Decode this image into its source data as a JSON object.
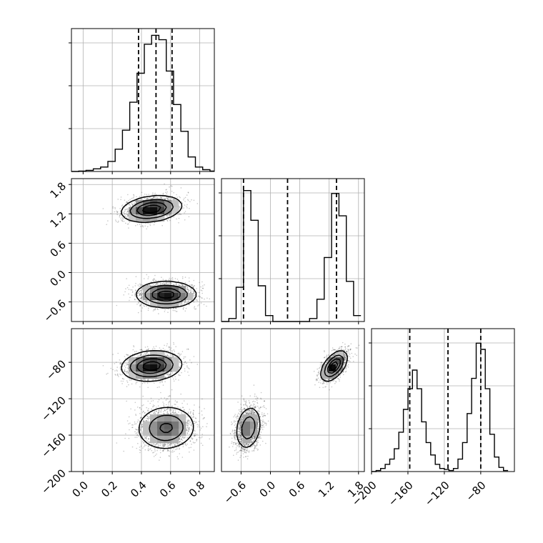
{
  "chart_data": {
    "type": "corner",
    "parameters": [
      {
        "index": 0,
        "range": [
          -0.08,
          0.9
        ],
        "ticks": [
          0.0,
          0.2,
          0.4,
          0.6,
          0.8
        ],
        "tick_labels": [
          "0.0",
          "0.2",
          "0.4",
          "0.6",
          "0.8"
        ]
      },
      {
        "index": 1,
        "range": [
          -1.0,
          1.92
        ],
        "ticks": [
          -0.6,
          0.0,
          0.6,
          1.2,
          1.8
        ],
        "tick_labels": [
          "−0.6",
          "0.0",
          "0.6",
          "1.2",
          "1.8"
        ]
      },
      {
        "index": 2,
        "range": [
          -200,
          -43
        ],
        "ticks": [
          -200,
          -160,
          -120,
          -80
        ],
        "tick_labels": [
          "−200",
          "−160",
          "−120",
          "−80"
        ]
      }
    ],
    "histograms": [
      {
        "parameter": 0,
        "bin_edges": [
          -0.08,
          -0.03,
          0.02,
          0.07,
          0.12,
          0.17,
          0.22,
          0.27,
          0.32,
          0.37,
          0.42,
          0.47,
          0.52,
          0.57,
          0.62,
          0.67,
          0.72,
          0.77,
          0.82,
          0.87,
          0.92
        ],
        "counts": [
          0,
          2,
          5,
          12,
          20,
          45,
          100,
          185,
          310,
          440,
          570,
          610,
          590,
          450,
          300,
          180,
          65,
          20,
          8,
          2
        ],
        "ymax": 640,
        "quantiles": [
          0.38,
          0.5,
          0.61
        ]
      },
      {
        "parameter": 1,
        "bin_edges": [
          -1.0,
          -0.85,
          -0.7,
          -0.55,
          -0.4,
          -0.25,
          -0.1,
          0.05,
          0.2,
          0.35,
          0.5,
          0.65,
          0.8,
          0.95,
          1.1,
          1.25,
          1.4,
          1.55,
          1.7,
          1.85
        ],
        "counts": [
          0,
          20,
          230,
          880,
          680,
          240,
          40,
          0,
          0,
          0,
          0,
          0,
          20,
          150,
          430,
          860,
          710,
          270,
          40
        ],
        "ymax": 960,
        "quantiles": [
          -0.55,
          0.35,
          1.35
        ]
      },
      {
        "parameter": 2,
        "bin_edges": [
          -200,
          -195,
          -190,
          -185,
          -180,
          -175,
          -170,
          -165,
          -160,
          -155,
          -150,
          -145,
          -140,
          -135,
          -130,
          -125,
          -120,
          -115,
          -110,
          -105,
          -100,
          -95,
          -90,
          -85,
          -80,
          -75,
          -70,
          -65,
          -60,
          -55,
          -50
        ],
        "counts": [
          0,
          5,
          15,
          35,
          60,
          110,
          190,
          300,
          400,
          490,
          400,
          240,
          140,
          80,
          35,
          15,
          10,
          5,
          15,
          60,
          140,
          280,
          450,
          620,
          590,
          400,
          180,
          70,
          20,
          5
        ],
        "ymax": 690,
        "quantiles": [
          -158,
          -116,
          -80
        ]
      }
    ],
    "clusters": [
      {
        "center": [
          0.47,
          1.3,
          -84
        ],
        "sd": [
          0.1,
          0.13,
          8
        ],
        "correlations": [
          0.25,
          0.12,
          0.55
        ]
      },
      {
        "center": [
          0.57,
          -0.45,
          -152
        ],
        "sd": [
          0.1,
          0.13,
          12
        ],
        "correlations": [
          0.0,
          0.05,
          0.2
        ]
      }
    ],
    "tick_label_rotation": 45,
    "grid": true
  }
}
